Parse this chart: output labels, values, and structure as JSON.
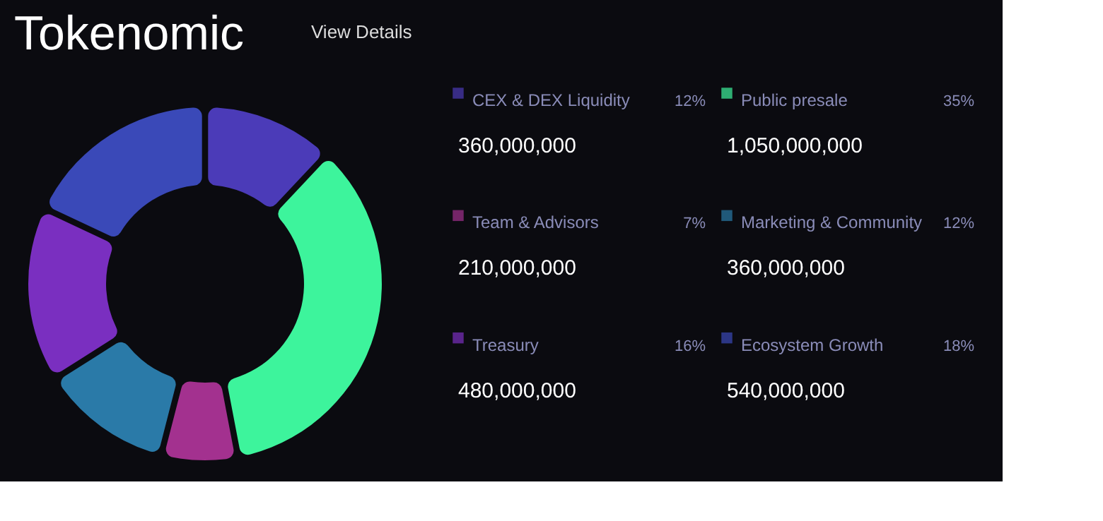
{
  "chart_data": {
    "type": "donut",
    "title": "Tokenomic",
    "categories": [
      "CEX & DEX Liquidity",
      "Public presale",
      "Team & Advisors",
      "Marketing & Community",
      "Treasury",
      "Ecosystem Growth"
    ],
    "values": [
      12,
      35,
      7,
      12,
      16,
      18
    ],
    "colors": [
      "#4b3bb8",
      "#3df49c",
      "#a3318f",
      "#2a7aa8",
      "#7a2fc0",
      "#3a49b8"
    ],
    "value_labels": [
      "12%",
      "35%",
      "7%",
      "12%",
      "16%",
      "18%"
    ],
    "legend": "right",
    "annotations": [
      "View Details",
      "360,000,000",
      "1,050,000,000",
      "210,000,000",
      "360,000,000",
      "480,000,000",
      "540,000,000"
    ]
  }
}
